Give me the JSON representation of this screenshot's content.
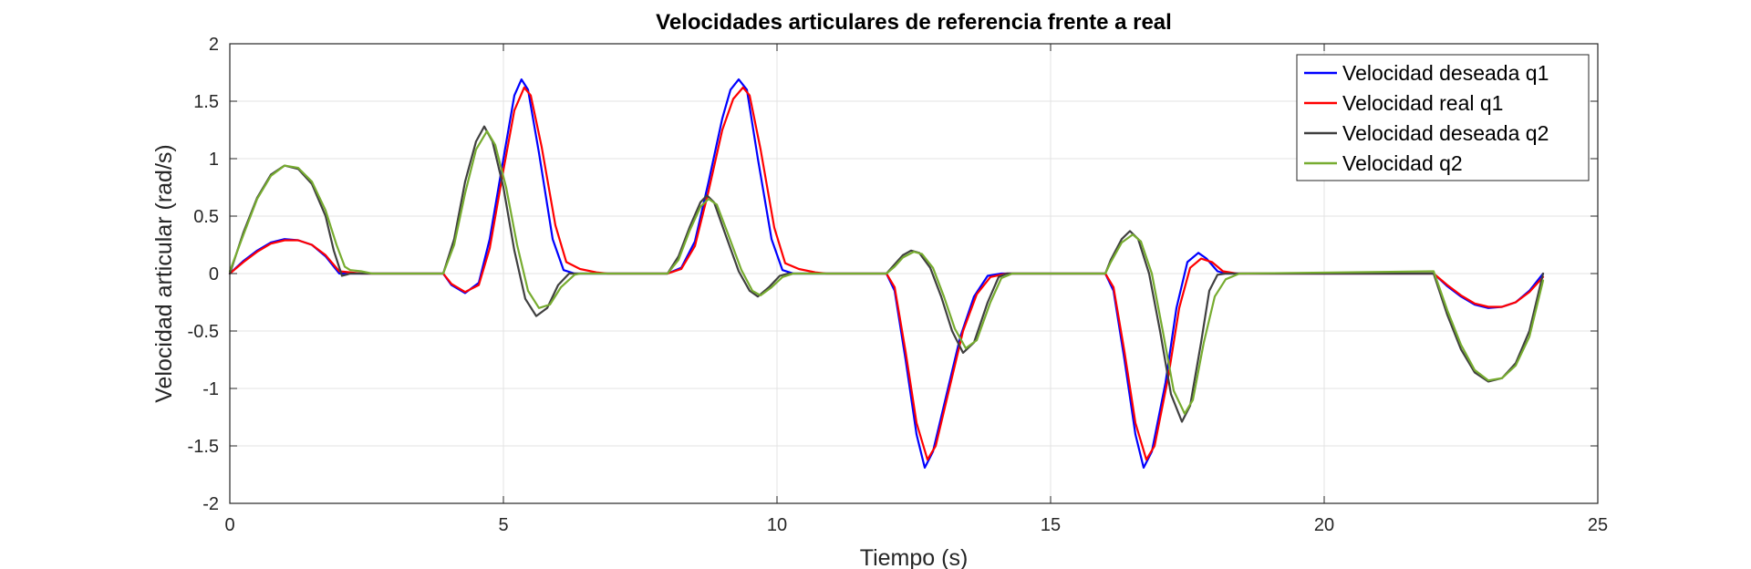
{
  "chart_data": {
    "type": "line",
    "title": "Velocidades articulares de referencia frente a real",
    "xlabel": "Tiempo (s)",
    "ylabel": "Velocidad articular (rad/s)",
    "xlim": [
      0,
      25
    ],
    "ylim": [
      -2,
      2
    ],
    "xticks": [
      0,
      5,
      10,
      15,
      20,
      25
    ],
    "xtick_labels": [
      "0",
      "5",
      "10",
      "15",
      "20",
      "25"
    ],
    "yticks": [
      -2,
      -1.5,
      -1,
      -0.5,
      0,
      0.5,
      1,
      1.5,
      2
    ],
    "ytick_labels": [
      "-2",
      "-1.5",
      "-1",
      "-0.5",
      "0",
      "0.5",
      "1",
      "1.5",
      "2"
    ],
    "grid": true,
    "legend_position": "top-right",
    "series": [
      {
        "name": "Velocidad deseada q1",
        "color": "#0000ff",
        "points": [
          [
            0,
            0
          ],
          [
            0.25,
            0.11
          ],
          [
            0.5,
            0.2
          ],
          [
            0.75,
            0.27
          ],
          [
            1,
            0.3
          ],
          [
            1.25,
            0.29
          ],
          [
            1.5,
            0.25
          ],
          [
            1.75,
            0.15
          ],
          [
            2,
            0
          ],
          [
            2.25,
            0
          ],
          [
            3.9,
            0
          ],
          [
            4.05,
            -0.1
          ],
          [
            4.3,
            -0.17
          ],
          [
            4.55,
            -0.08
          ],
          [
            4.75,
            0.3
          ],
          [
            5,
            1.0
          ],
          [
            5.2,
            1.55
          ],
          [
            5.33,
            1.69
          ],
          [
            5.45,
            1.6
          ],
          [
            5.65,
            1.05
          ],
          [
            5.9,
            0.3
          ],
          [
            6.1,
            0.03
          ],
          [
            6.3,
            0
          ],
          [
            8,
            0
          ],
          [
            8.25,
            0.05
          ],
          [
            8.5,
            0.28
          ],
          [
            8.75,
            0.8
          ],
          [
            9,
            1.35
          ],
          [
            9.15,
            1.6
          ],
          [
            9.3,
            1.69
          ],
          [
            9.45,
            1.6
          ],
          [
            9.65,
            1.0
          ],
          [
            9.9,
            0.3
          ],
          [
            10.1,
            0.03
          ],
          [
            10.3,
            0
          ],
          [
            12,
            0
          ],
          [
            12.15,
            -0.15
          ],
          [
            12.35,
            -0.75
          ],
          [
            12.55,
            -1.4
          ],
          [
            12.7,
            -1.69
          ],
          [
            12.85,
            -1.55
          ],
          [
            13.1,
            -1.05
          ],
          [
            13.35,
            -0.55
          ],
          [
            13.6,
            -0.2
          ],
          [
            13.85,
            -0.02
          ],
          [
            14.1,
            0
          ],
          [
            16,
            0
          ],
          [
            16.15,
            -0.15
          ],
          [
            16.35,
            -0.75
          ],
          [
            16.55,
            -1.4
          ],
          [
            16.7,
            -1.69
          ],
          [
            16.85,
            -1.55
          ],
          [
            17.1,
            -0.95
          ],
          [
            17.3,
            -0.3
          ],
          [
            17.5,
            0.1
          ],
          [
            17.7,
            0.18
          ],
          [
            17.85,
            0.13
          ],
          [
            18.05,
            0.02
          ],
          [
            18.2,
            0
          ],
          [
            22,
            0
          ],
          [
            22.25,
            -0.11
          ],
          [
            22.5,
            -0.2
          ],
          [
            22.75,
            -0.27
          ],
          [
            23,
            -0.3
          ],
          [
            23.25,
            -0.29
          ],
          [
            23.5,
            -0.25
          ],
          [
            23.75,
            -0.15
          ],
          [
            24,
            0
          ]
        ]
      },
      {
        "name": "Velocidad real q1",
        "color": "#ff0000",
        "points": [
          [
            0,
            0
          ],
          [
            0.25,
            0.1
          ],
          [
            0.5,
            0.19
          ],
          [
            0.75,
            0.26
          ],
          [
            1,
            0.29
          ],
          [
            1.25,
            0.29
          ],
          [
            1.5,
            0.25
          ],
          [
            1.75,
            0.16
          ],
          [
            2,
            0.02
          ],
          [
            2.2,
            0.01
          ],
          [
            2.4,
            0
          ],
          [
            3.9,
            0
          ],
          [
            4.05,
            -0.09
          ],
          [
            4.3,
            -0.16
          ],
          [
            4.55,
            -0.1
          ],
          [
            4.75,
            0.22
          ],
          [
            5,
            0.9
          ],
          [
            5.2,
            1.42
          ],
          [
            5.38,
            1.62
          ],
          [
            5.5,
            1.55
          ],
          [
            5.7,
            1.1
          ],
          [
            5.95,
            0.42
          ],
          [
            6.15,
            0.1
          ],
          [
            6.4,
            0.04
          ],
          [
            6.7,
            0.01
          ],
          [
            6.9,
            0
          ],
          [
            8,
            0
          ],
          [
            8.25,
            0.04
          ],
          [
            8.5,
            0.24
          ],
          [
            8.75,
            0.72
          ],
          [
            9,
            1.25
          ],
          [
            9.2,
            1.52
          ],
          [
            9.38,
            1.62
          ],
          [
            9.5,
            1.55
          ],
          [
            9.7,
            1.08
          ],
          [
            9.95,
            0.4
          ],
          [
            10.15,
            0.09
          ],
          [
            10.4,
            0.04
          ],
          [
            10.7,
            0.01
          ],
          [
            10.9,
            0
          ],
          [
            12,
            0
          ],
          [
            12.15,
            -0.12
          ],
          [
            12.35,
            -0.68
          ],
          [
            12.55,
            -1.3
          ],
          [
            12.75,
            -1.62
          ],
          [
            12.9,
            -1.5
          ],
          [
            13.15,
            -1.0
          ],
          [
            13.4,
            -0.5
          ],
          [
            13.65,
            -0.18
          ],
          [
            13.9,
            -0.03
          ],
          [
            14.2,
            0
          ],
          [
            16,
            0
          ],
          [
            16.15,
            -0.12
          ],
          [
            16.35,
            -0.68
          ],
          [
            16.55,
            -1.3
          ],
          [
            16.75,
            -1.62
          ],
          [
            16.9,
            -1.5
          ],
          [
            17.15,
            -0.9
          ],
          [
            17.35,
            -0.3
          ],
          [
            17.55,
            0.05
          ],
          [
            17.75,
            0.13
          ],
          [
            17.95,
            0.1
          ],
          [
            18.15,
            0.02
          ],
          [
            18.4,
            0
          ],
          [
            22,
            0
          ],
          [
            22.25,
            -0.1
          ],
          [
            22.5,
            -0.19
          ],
          [
            22.75,
            -0.26
          ],
          [
            23,
            -0.29
          ],
          [
            23.25,
            -0.29
          ],
          [
            23.5,
            -0.25
          ],
          [
            23.75,
            -0.16
          ],
          [
            24,
            -0.03
          ]
        ]
      },
      {
        "name": "Velocidad deseada q2",
        "color": "#404040",
        "points": [
          [
            0,
            0
          ],
          [
            0.25,
            0.36
          ],
          [
            0.5,
            0.66
          ],
          [
            0.75,
            0.86
          ],
          [
            1,
            0.94
          ],
          [
            1.25,
            0.91
          ],
          [
            1.5,
            0.78
          ],
          [
            1.75,
            0.5
          ],
          [
            1.9,
            0.2
          ],
          [
            2.05,
            -0.02
          ],
          [
            2.2,
            0
          ],
          [
            3.9,
            0
          ],
          [
            4.1,
            0.3
          ],
          [
            4.3,
            0.8
          ],
          [
            4.5,
            1.15
          ],
          [
            4.65,
            1.28
          ],
          [
            4.8,
            1.15
          ],
          [
            5,
            0.75
          ],
          [
            5.2,
            0.2
          ],
          [
            5.4,
            -0.22
          ],
          [
            5.6,
            -0.37
          ],
          [
            5.8,
            -0.3
          ],
          [
            6,
            -0.1
          ],
          [
            6.2,
            0
          ],
          [
            8,
            0
          ],
          [
            8.2,
            0.15
          ],
          [
            8.4,
            0.4
          ],
          [
            8.6,
            0.62
          ],
          [
            8.72,
            0.68
          ],
          [
            8.85,
            0.62
          ],
          [
            9.05,
            0.35
          ],
          [
            9.3,
            0.02
          ],
          [
            9.5,
            -0.15
          ],
          [
            9.65,
            -0.2
          ],
          [
            9.85,
            -0.12
          ],
          [
            10.05,
            -0.02
          ],
          [
            10.2,
            0
          ],
          [
            12,
            0
          ],
          [
            12.15,
            0.08
          ],
          [
            12.3,
            0.16
          ],
          [
            12.45,
            0.2
          ],
          [
            12.6,
            0.18
          ],
          [
            12.8,
            0.05
          ],
          [
            13,
            -0.2
          ],
          [
            13.2,
            -0.5
          ],
          [
            13.4,
            -0.69
          ],
          [
            13.6,
            -0.6
          ],
          [
            13.85,
            -0.25
          ],
          [
            14.05,
            -0.03
          ],
          [
            14.2,
            0
          ],
          [
            16,
            0
          ],
          [
            16.1,
            0.12
          ],
          [
            16.3,
            0.3
          ],
          [
            16.45,
            0.37
          ],
          [
            16.6,
            0.3
          ],
          [
            16.8,
            0
          ],
          [
            17,
            -0.5
          ],
          [
            17.2,
            -1.05
          ],
          [
            17.4,
            -1.29
          ],
          [
            17.55,
            -1.15
          ],
          [
            17.75,
            -0.6
          ],
          [
            17.9,
            -0.15
          ],
          [
            18.05,
            -0.01
          ],
          [
            18.2,
            0
          ],
          [
            22,
            0
          ],
          [
            22.25,
            -0.36
          ],
          [
            22.5,
            -0.66
          ],
          [
            22.75,
            -0.86
          ],
          [
            23,
            -0.94
          ],
          [
            23.25,
            -0.91
          ],
          [
            23.5,
            -0.78
          ],
          [
            23.75,
            -0.5
          ],
          [
            24,
            0
          ]
        ]
      },
      {
        "name": "Velocidad q2",
        "color": "#77ac30",
        "points": [
          [
            0,
            0.02
          ],
          [
            0.25,
            0.34
          ],
          [
            0.5,
            0.65
          ],
          [
            0.75,
            0.85
          ],
          [
            1,
            0.94
          ],
          [
            1.25,
            0.92
          ],
          [
            1.5,
            0.8
          ],
          [
            1.75,
            0.55
          ],
          [
            1.95,
            0.25
          ],
          [
            2.1,
            0.06
          ],
          [
            2.2,
            0.03
          ],
          [
            2.4,
            0.02
          ],
          [
            2.6,
            0
          ],
          [
            3.9,
            0
          ],
          [
            4.1,
            0.25
          ],
          [
            4.3,
            0.7
          ],
          [
            4.5,
            1.08
          ],
          [
            4.7,
            1.24
          ],
          [
            4.85,
            1.12
          ],
          [
            5.05,
            0.75
          ],
          [
            5.25,
            0.25
          ],
          [
            5.45,
            -0.15
          ],
          [
            5.65,
            -0.3
          ],
          [
            5.85,
            -0.27
          ],
          [
            6.05,
            -0.12
          ],
          [
            6.3,
            -0.01
          ],
          [
            6.4,
            0
          ],
          [
            8,
            0
          ],
          [
            8.2,
            0.12
          ],
          [
            8.4,
            0.37
          ],
          [
            8.6,
            0.58
          ],
          [
            8.75,
            0.65
          ],
          [
            8.9,
            0.6
          ],
          [
            9.1,
            0.35
          ],
          [
            9.35,
            0.03
          ],
          [
            9.55,
            -0.15
          ],
          [
            9.7,
            -0.19
          ],
          [
            9.9,
            -0.12
          ],
          [
            10.1,
            -0.03
          ],
          [
            10.3,
            0
          ],
          [
            12,
            0
          ],
          [
            12.15,
            0.06
          ],
          [
            12.3,
            0.14
          ],
          [
            12.5,
            0.19
          ],
          [
            12.65,
            0.17
          ],
          [
            12.85,
            0.05
          ],
          [
            13.05,
            -0.2
          ],
          [
            13.25,
            -0.48
          ],
          [
            13.45,
            -0.65
          ],
          [
            13.65,
            -0.58
          ],
          [
            13.9,
            -0.25
          ],
          [
            14.1,
            -0.04
          ],
          [
            14.3,
            0
          ],
          [
            16,
            0
          ],
          [
            16.1,
            0.1
          ],
          [
            16.3,
            0.27
          ],
          [
            16.5,
            0.34
          ],
          [
            16.65,
            0.28
          ],
          [
            16.85,
            0
          ],
          [
            17.05,
            -0.5
          ],
          [
            17.25,
            -1.02
          ],
          [
            17.45,
            -1.22
          ],
          [
            17.6,
            -1.1
          ],
          [
            17.8,
            -0.6
          ],
          [
            18,
            -0.2
          ],
          [
            18.2,
            -0.05
          ],
          [
            18.45,
            0
          ],
          [
            22,
            0.02
          ],
          [
            22.25,
            -0.32
          ],
          [
            22.5,
            -0.62
          ],
          [
            22.75,
            -0.84
          ],
          [
            23,
            -0.93
          ],
          [
            23.25,
            -0.91
          ],
          [
            23.5,
            -0.8
          ],
          [
            23.75,
            -0.55
          ],
          [
            24,
            -0.06
          ]
        ]
      }
    ]
  }
}
